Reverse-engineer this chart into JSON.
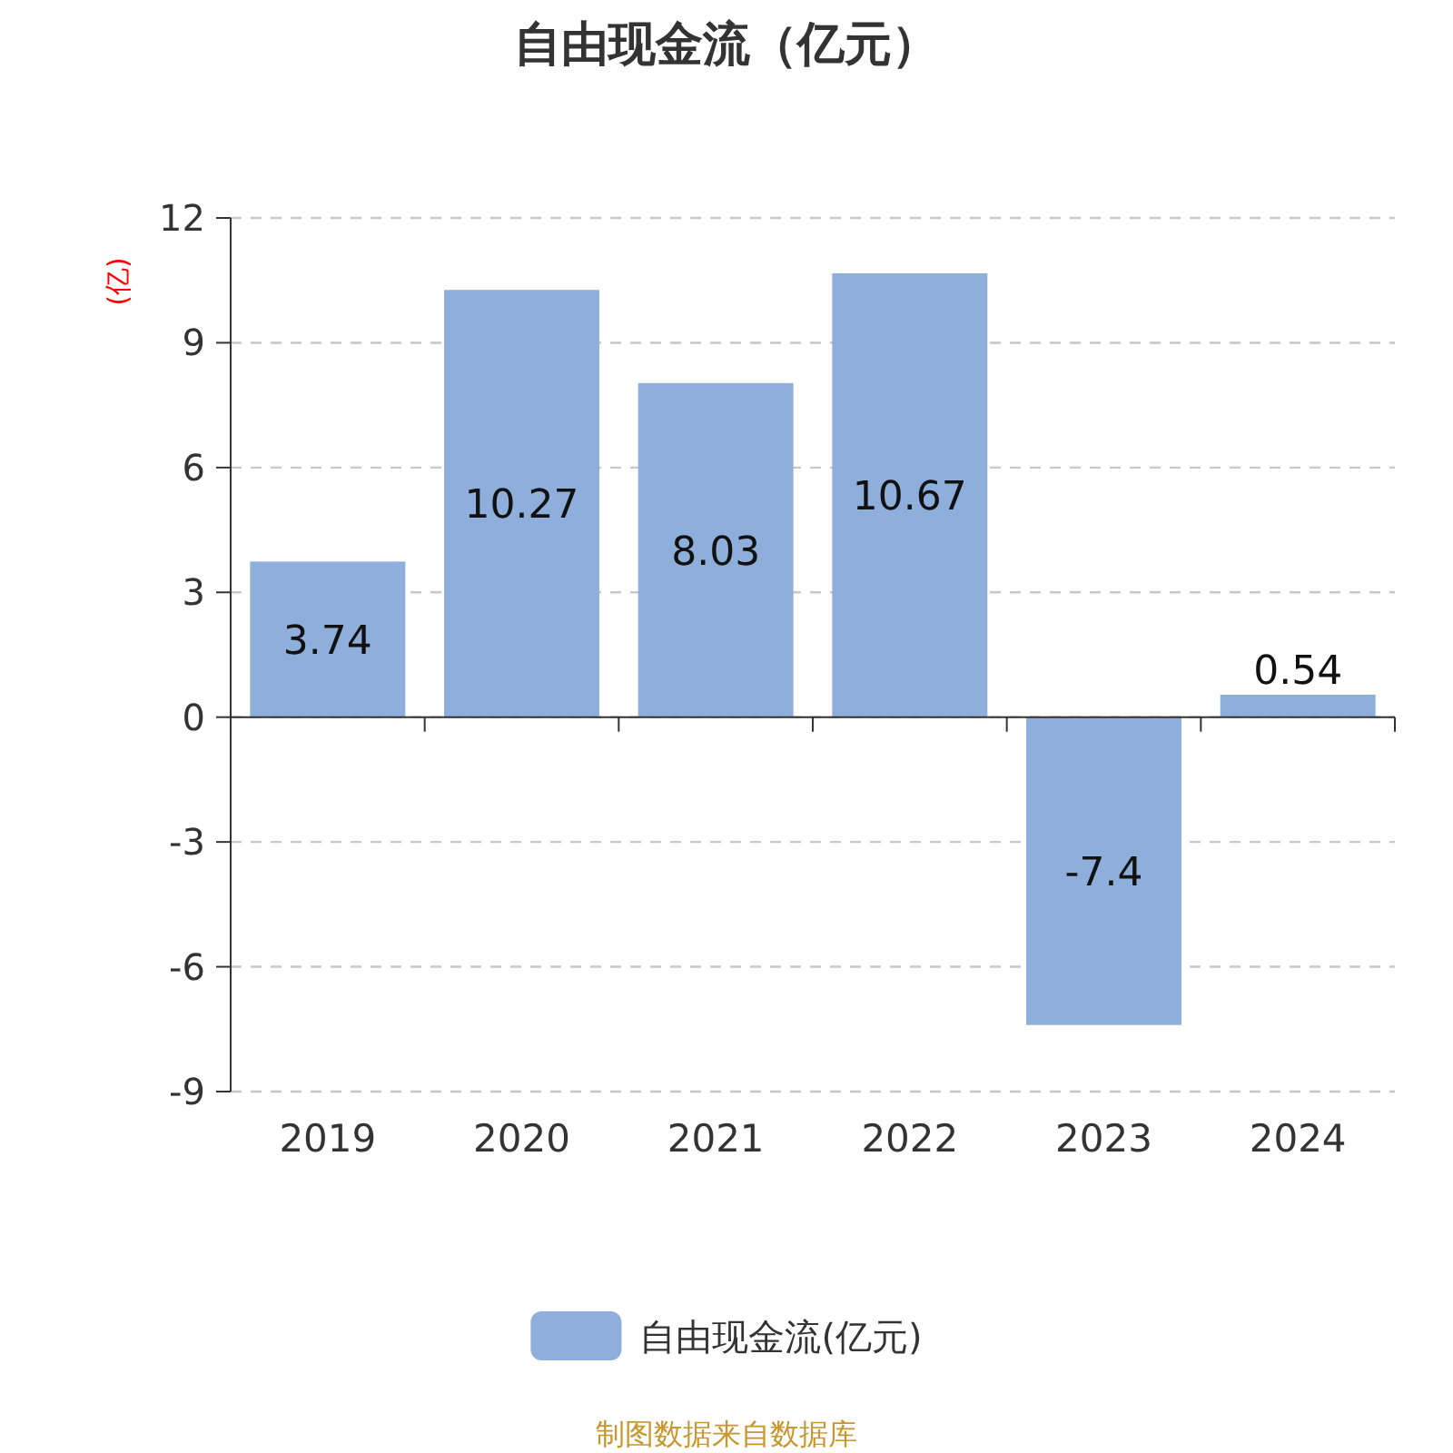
{
  "chart_data": {
    "type": "bar",
    "title": "自由现金流（亿元）",
    "ylabel": "(亿)",
    "categories": [
      "2019",
      "2020",
      "2021",
      "2022",
      "2023",
      "2024"
    ],
    "series": [
      {
        "name": "自由现金流(亿元)",
        "color": "#8eaedb",
        "values": [
          3.74,
          10.27,
          8.03,
          10.67,
          -7.4,
          0.54
        ]
      }
    ],
    "ylim": [
      -9,
      12
    ],
    "yticks": [
      -9,
      -6,
      -3,
      0,
      3,
      6,
      9,
      12
    ],
    "grid": "y",
    "legend": "bottom",
    "data_labels": true,
    "annotations": [
      "制图数据来自数据库"
    ]
  }
}
